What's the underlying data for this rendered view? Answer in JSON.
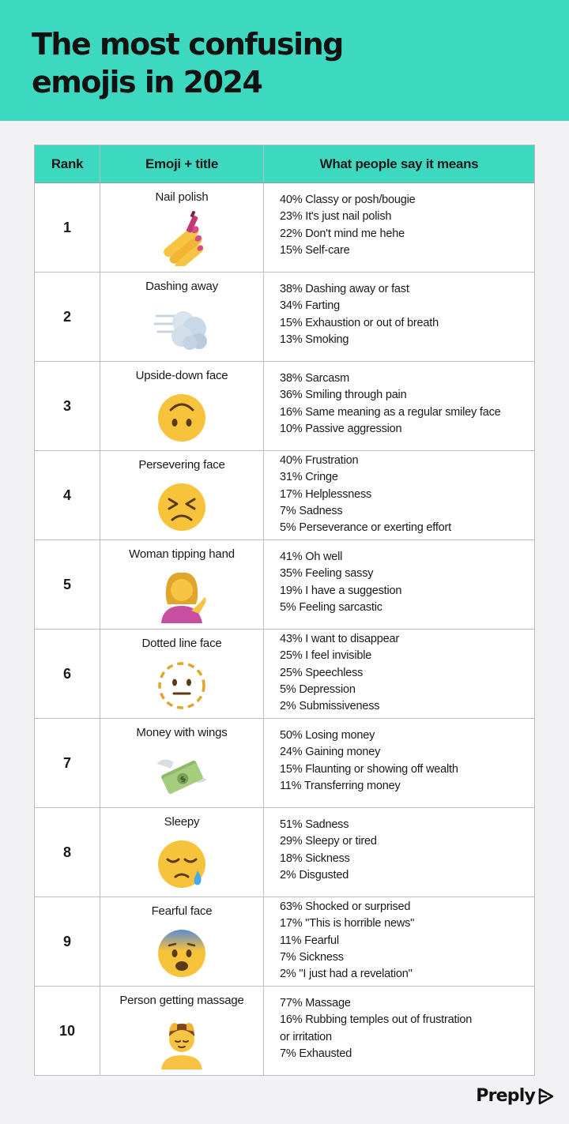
{
  "header": {
    "title_line1": "The most confusing",
    "title_line2": "emojis in 2024",
    "bg_color": "#3dd8c0"
  },
  "table": {
    "headers": [
      "Rank",
      "Emoji + title",
      "What people say it means"
    ],
    "rows": [
      {
        "rank": "1",
        "title": "Nail polish",
        "icon": "nail-polish-icon",
        "meanings": [
          "40% Classy or posh/bougie",
          "23% It's just nail polish",
          "22% Don't mind me hehe",
          "15% Self-care"
        ]
      },
      {
        "rank": "2",
        "title": "Dashing away",
        "icon": "dashing-away-icon",
        "meanings": [
          "38% Dashing away or fast",
          "34% Farting",
          "15% Exhaustion or out of breath",
          "13% Smoking"
        ]
      },
      {
        "rank": "3",
        "title": "Upside-down face",
        "icon": "upside-down-face-icon",
        "meanings": [
          "38% Sarcasm",
          "36% Smiling through pain",
          "16% Same meaning as a regular smiley face",
          "10% Passive aggression"
        ]
      },
      {
        "rank": "4",
        "title": "Persevering face",
        "icon": "persevering-face-icon",
        "meanings": [
          "40% Frustration",
          "31% Cringe",
          "17% Helplessness",
          "7% Sadness",
          "5% Perseverance or exerting effort"
        ]
      },
      {
        "rank": "5",
        "title": "Woman tipping hand",
        "icon": "woman-tipping-hand-icon",
        "meanings": [
          "41% Oh well",
          "35% Feeling sassy",
          "19% I have a suggestion",
          "5% Feeling sarcastic"
        ]
      },
      {
        "rank": "6",
        "title": "Dotted line face",
        "icon": "dotted-line-face-icon",
        "meanings": [
          "43% I want to disappear",
          "25% I feel invisible",
          "25% Speechless",
          "5% Depression",
          "2% Submissiveness"
        ]
      },
      {
        "rank": "7",
        "title": "Money with wings",
        "icon": "money-with-wings-icon",
        "meanings": [
          "50% Losing money",
          "24% Gaining money",
          "15% Flaunting or showing off wealth",
          "11% Transferring money"
        ]
      },
      {
        "rank": "8",
        "title": "Sleepy",
        "icon": "sleepy-face-icon",
        "meanings": [
          "51% Sadness",
          "29% Sleepy or tired",
          "18% Sickness",
          "2% Disgusted"
        ]
      },
      {
        "rank": "9",
        "title": "Fearful face",
        "icon": "fearful-face-icon",
        "meanings": [
          "63% Shocked or surprised",
          "17% \"This is horrible news\"",
          "11% Fearful",
          "7% Sickness",
          "2% \"I just had a revelation\""
        ]
      },
      {
        "rank": "10",
        "title": "Person getting massage",
        "icon": "person-getting-massage-icon",
        "meanings": [
          "77% Massage",
          "16% Rubbing temples out of frustration",
          "or irritation",
          "7% Exhausted"
        ]
      }
    ]
  },
  "brand": {
    "name": "Preply",
    "icon": "preply-logo-icon"
  }
}
